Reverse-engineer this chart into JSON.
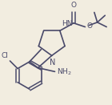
{
  "background_color": "#f2ede0",
  "line_color": "#4a4a6a",
  "line_width": 1.2,
  "figsize": [
    1.4,
    1.31
  ],
  "dpi": 100,
  "xlim": [
    0,
    140
  ],
  "ylim": [
    0,
    131
  ]
}
